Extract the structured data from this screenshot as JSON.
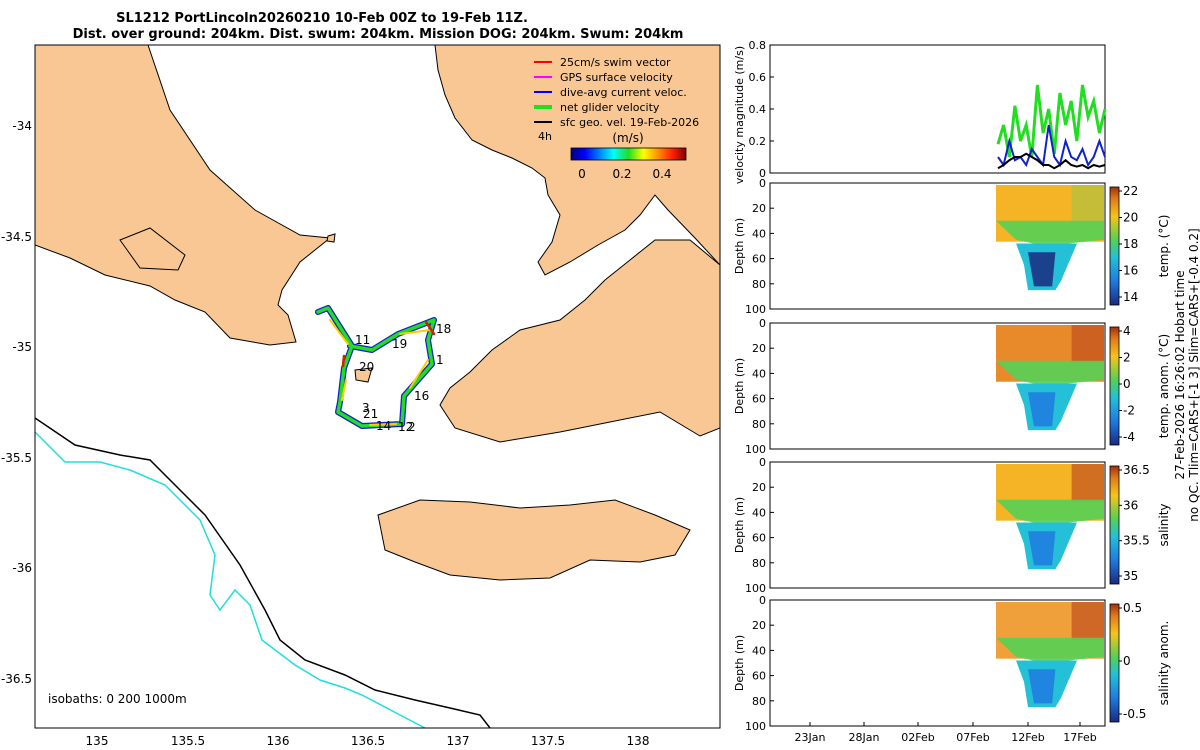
{
  "title": {
    "line1": "SL1212 PortLincoln20260210 10-Feb 00Z to 19-Feb 11Z.",
    "line2": "Dist. over ground: 204km. Dist. swum: 204km. Mission DOG: 204km. Swum: 204km"
  },
  "colors": {
    "land": "#f9c794",
    "sea": "#ffffff",
    "track_green": "#22dd22",
    "current_blue": "#1122cc",
    "iso200": "#000000",
    "iso1000": "#22dddd"
  },
  "map": {
    "xlim": [
      134.65,
      138.45
    ],
    "ylim": [
      -36.7,
      -33.65
    ],
    "xticks": [
      "135",
      "135.5",
      "136",
      "136.5",
      "137",
      "137.5",
      "138"
    ],
    "yticks": [
      "-34",
      "-34.5",
      "-35",
      "-35.5",
      "-36",
      "-36.5"
    ],
    "legend": [
      {
        "label": "25cm/s swim vector",
        "color": "#ff0000"
      },
      {
        "label": "GPS surface velocity",
        "color": "#ff00ff"
      },
      {
        "label": "dive-avg current veloc.",
        "color": "#0000ff"
      },
      {
        "label": "net glider velocity",
        "color": "#22dd22"
      },
      {
        "label": "sfc geo. vel. 19-Feb-2026",
        "color": "#000000"
      }
    ],
    "legend_suffix": "4h",
    "colorbar_label": "(m/s)",
    "colorbar_ticks": [
      "0",
      "0.2",
      "0.4"
    ],
    "day_labels": [
      "11",
      "19",
      "18",
      "1",
      "20",
      "16",
      "3",
      "21",
      "14",
      "12",
      "2"
    ],
    "isobath_note": "isobaths: 0   200  1000m"
  },
  "chart_data": [
    {
      "type": "line",
      "panel": "velocity",
      "ylabel": "velocity magnitude (m/s)",
      "ylim": [
        0,
        0.8
      ],
      "yticks": [
        "0",
        "0.2",
        "0.4",
        "0.6",
        "0.8"
      ],
      "series": [
        {
          "color": "#22dd22",
          "values": [
            0.18,
            0.3,
            0.1,
            0.42,
            0.2,
            0.3,
            0.1,
            0.55,
            0.25,
            0.4,
            0.12,
            0.5,
            0.3,
            0.45,
            0.2,
            0.55,
            0.35,
            0.45,
            0.25,
            0.4
          ]
        },
        {
          "color": "#1122cc",
          "values": [
            0.1,
            0.05,
            0.2,
            0.08,
            0.1,
            0.05,
            0.15,
            0.1,
            0.05,
            0.3,
            0.1,
            0.05,
            0.2,
            0.1,
            0.08,
            0.15,
            0.05,
            0.1,
            0.2,
            0.1
          ]
        },
        {
          "color": "#000000",
          "values": [
            0.03,
            0.05,
            0.08,
            0.1,
            0.1,
            0.12,
            0.1,
            0.08,
            0.05,
            0.05,
            0.03,
            0.05,
            0.08,
            0.05,
            0.04,
            0.05,
            0.03,
            0.05,
            0.04,
            0.05
          ]
        }
      ]
    },
    {
      "type": "heatmap",
      "panel": "temp",
      "ylabel": "Depth (m)",
      "cbar_label": "temp. (°C)",
      "cbar_ticks": [
        "22",
        "20",
        "18",
        "16",
        "14"
      ],
      "cbar_values": [
        22,
        20,
        18,
        16,
        14
      ]
    },
    {
      "type": "heatmap",
      "panel": "tempanom",
      "ylabel": "Depth (m)",
      "cbar_label": "temp. anom. (°C)",
      "cbar_ticks": [
        "4",
        "2",
        "0",
        "-2",
        "-4"
      ],
      "cbar_values": [
        4,
        2,
        0,
        -2,
        -4
      ]
    },
    {
      "type": "heatmap",
      "panel": "salinity",
      "ylabel": "Depth (m)",
      "cbar_label": "salinity",
      "cbar_ticks": [
        "36.5",
        "36",
        "35.5",
        "35"
      ],
      "cbar_values": [
        36.5,
        36,
        35.5,
        35
      ]
    },
    {
      "type": "heatmap",
      "panel": "salanom",
      "ylabel": "Depth (m)",
      "cbar_label": "salinity anom.",
      "cbar_ticks": [
        "0.5",
        "0",
        "-0.5"
      ],
      "cbar_values": [
        0.5,
        0,
        -0.5
      ]
    }
  ],
  "profiles": {
    "depth_ticks": [
      "0",
      "20",
      "40",
      "60",
      "80",
      "100"
    ],
    "ylim": [
      0,
      100
    ],
    "time_ticks": [
      "23Jan",
      "28Jan",
      "02Feb",
      "07Feb",
      "12Feb",
      "17Feb"
    ]
  },
  "side_note_1": "27-Feb-2026 16:26:02 Hobart time",
  "side_note_2": "no QC. Tlim=CARS+[-1 3] Slim=CARS+[-0.4 0.2]"
}
